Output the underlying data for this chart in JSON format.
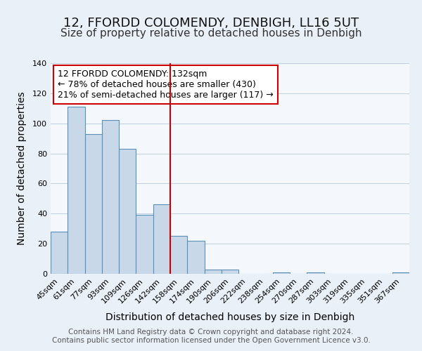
{
  "title": "12, FFORDD COLOMENDY, DENBIGH, LL16 5UT",
  "subtitle": "Size of property relative to detached houses in Denbigh",
  "xlabel": "Distribution of detached houses by size in Denbigh",
  "ylabel": "Number of detached properties",
  "bar_labels": [
    "45sqm",
    "61sqm",
    "77sqm",
    "93sqm",
    "109sqm",
    "126sqm",
    "142sqm",
    "158sqm",
    "174sqm",
    "190sqm",
    "206sqm",
    "222sqm",
    "238sqm",
    "254sqm",
    "270sqm",
    "287sqm",
    "303sqm",
    "319sqm",
    "335sqm",
    "351sqm",
    "367sqm"
  ],
  "bar_values": [
    28,
    111,
    93,
    102,
    83,
    39,
    46,
    25,
    22,
    3,
    3,
    0,
    0,
    1,
    0,
    1,
    0,
    0,
    0,
    0,
    1
  ],
  "bar_color": "#c8d8e8",
  "bar_edge_color": "#5a90b8",
  "vline_color": "#cc0000",
  "annotation_line1": "12 FFORDD COLOMENDY: 132sqm",
  "annotation_line2": "← 78% of detached houses are smaller (430)",
  "annotation_line3": "21% of semi-detached houses are larger (117) →",
  "annotation_box_color": "#ffffff",
  "annotation_box_edge_color": "#cc0000",
  "ylim": [
    0,
    140
  ],
  "yticks": [
    0,
    20,
    40,
    60,
    80,
    100,
    120,
    140
  ],
  "footer1": "Contains HM Land Registry data © Crown copyright and database right 2024.",
  "footer2": "Contains public sector information licensed under the Open Government Licence v3.0.",
  "bg_color": "#eaf0f7",
  "plot_bg_color": "#f4f8fd",
  "title_fontsize": 13,
  "subtitle_fontsize": 11,
  "axis_label_fontsize": 10,
  "tick_fontsize": 8,
  "annotation_fontsize": 9,
  "footer_fontsize": 7.5
}
